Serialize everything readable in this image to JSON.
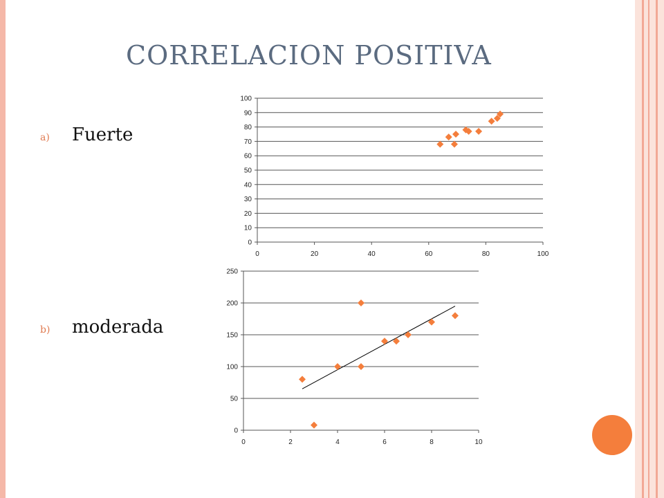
{
  "slide": {
    "title": "CORRELACION POSITIVA",
    "items": [
      {
        "marker": "a)",
        "text": "Fuerte"
      },
      {
        "marker": "b)",
        "text": "moderada"
      }
    ]
  },
  "colors": {
    "title": "#5b6b80",
    "marker": "#f47e3c",
    "accent_circle": "#f47e3c",
    "frame": "#f5b8a8"
  },
  "chart_data": [
    {
      "type": "scatter",
      "xlim": [
        0,
        100
      ],
      "ylim": [
        0,
        100
      ],
      "xticks": [
        0,
        20,
        40,
        60,
        80,
        100
      ],
      "yticks": [
        0,
        10,
        20,
        30,
        40,
        50,
        60,
        70,
        80,
        90,
        100
      ],
      "grid": "horizontal",
      "series": [
        {
          "marker": "diamond",
          "color": "#f47e3c",
          "points": [
            [
              64,
              68
            ],
            [
              67,
              73
            ],
            [
              69,
              68
            ],
            [
              69.5,
              75
            ],
            [
              73,
              78
            ],
            [
              74,
              77
            ],
            [
              77.5,
              77
            ],
            [
              82,
              84
            ],
            [
              84,
              86
            ],
            [
              85,
              89
            ]
          ]
        }
      ]
    },
    {
      "type": "scatter",
      "xlim": [
        0,
        10
      ],
      "ylim": [
        0,
        250
      ],
      "xticks": [
        0,
        2,
        4,
        6,
        8,
        10
      ],
      "yticks": [
        0,
        50,
        100,
        150,
        200,
        250
      ],
      "grid": "horizontal",
      "series": [
        {
          "marker": "diamond",
          "color": "#f47e3c",
          "points": [
            [
              2.5,
              80
            ],
            [
              3,
              8
            ],
            [
              4,
              100
            ],
            [
              5,
              100
            ],
            [
              5,
              200
            ],
            [
              6,
              140
            ],
            [
              6.5,
              140
            ],
            [
              7,
              150
            ],
            [
              8,
              170
            ],
            [
              9,
              180
            ]
          ]
        }
      ],
      "trendline": {
        "x": [
          2.5,
          9
        ],
        "y": [
          65,
          195
        ]
      }
    }
  ]
}
